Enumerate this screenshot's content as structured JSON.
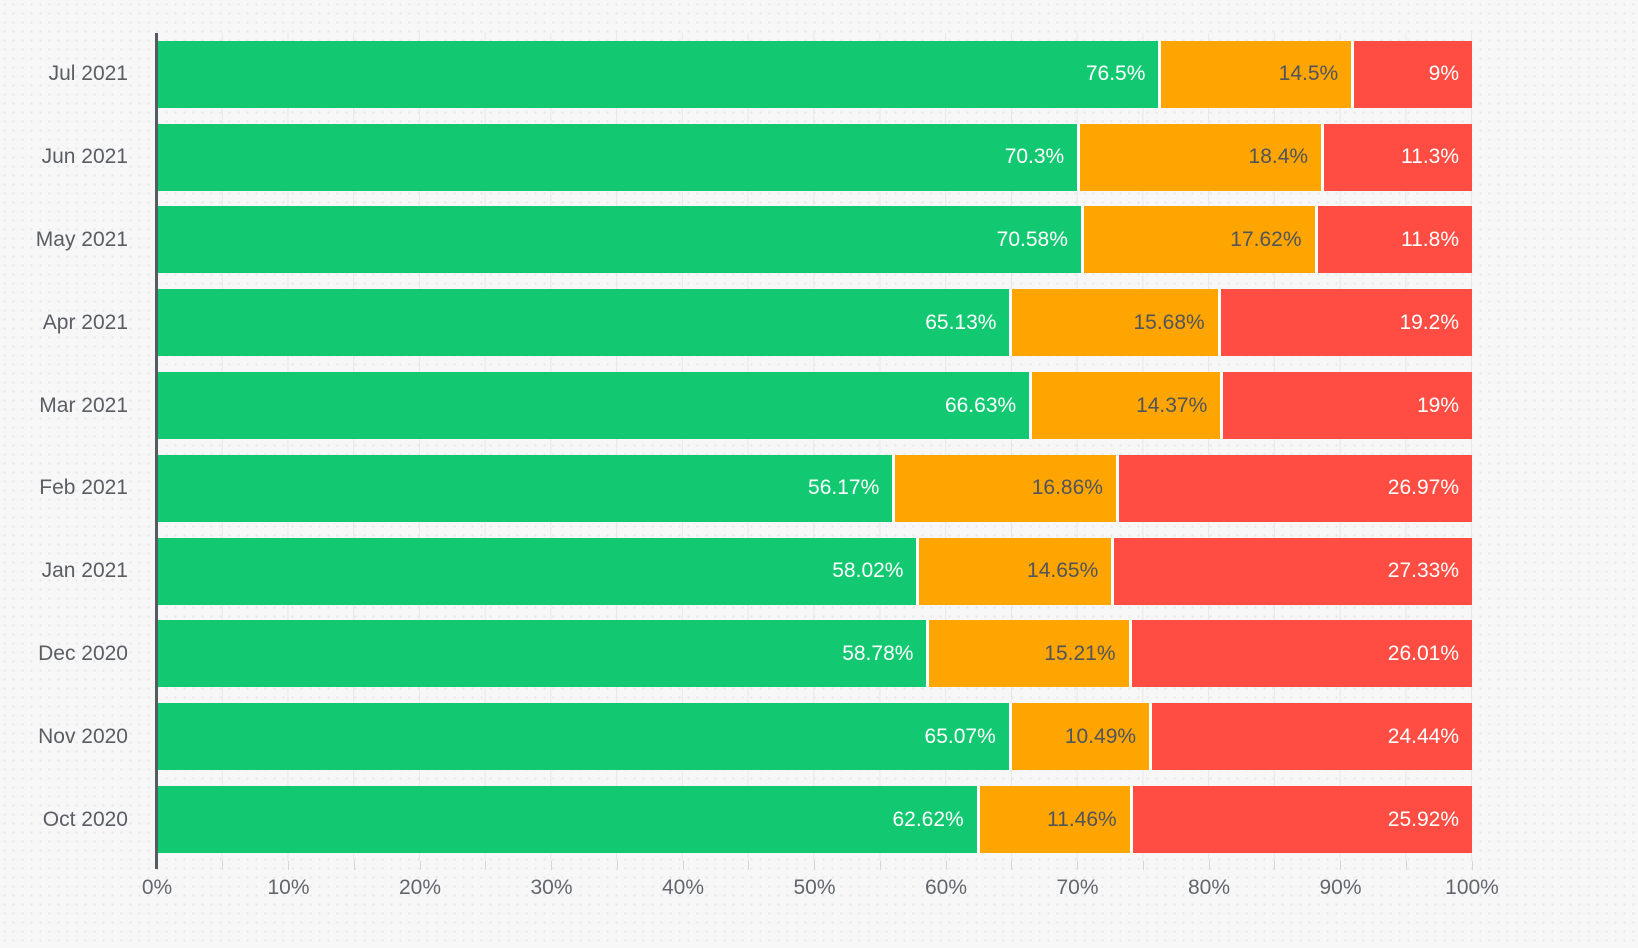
{
  "chart_data": {
    "type": "bar",
    "orientation": "horizontal",
    "stacked": true,
    "title": "",
    "xlabel": "",
    "ylabel": "",
    "xlim": [
      0,
      100
    ],
    "grid": true,
    "legend": "none",
    "categories": [
      "Jul 2021",
      "Jun 2021",
      "May 2021",
      "Apr 2021",
      "Mar 2021",
      "Feb 2021",
      "Jan 2021",
      "Dec 2020",
      "Nov 2020",
      "Oct 2020"
    ],
    "series": [
      {
        "name": "green-segment",
        "color": "#12c972",
        "label_color": "#ffffff",
        "values": [
          76.5,
          70.3,
          70.58,
          65.13,
          66.63,
          56.17,
          58.02,
          58.78,
          65.07,
          62.62
        ],
        "labels": [
          "76.5%",
          "70.3%",
          "70.58%",
          "65.13%",
          "66.63%",
          "56.17%",
          "58.02%",
          "58.78%",
          "65.07%",
          "62.62%"
        ]
      },
      {
        "name": "orange-segment",
        "color": "#ffa502",
        "label_color": "#515459",
        "values": [
          14.5,
          18.4,
          17.62,
          15.68,
          14.37,
          16.86,
          14.65,
          15.21,
          10.49,
          11.46
        ],
        "labels": [
          "14.5%",
          "18.4%",
          "17.62%",
          "15.68%",
          "14.37%",
          "16.86%",
          "14.65%",
          "15.21%",
          "10.49%",
          "11.46%"
        ]
      },
      {
        "name": "red-segment",
        "color": "#ff4d43",
        "label_color": "#ffffff",
        "values": [
          9,
          11.3,
          11.8,
          19.2,
          19,
          26.97,
          27.33,
          26.01,
          24.44,
          25.92
        ],
        "labels": [
          "9%",
          "11.3%",
          "11.8%",
          "19.2%",
          "19%",
          "26.97%",
          "27.33%",
          "26.01%",
          "24.44%",
          "25.92%"
        ]
      }
    ],
    "x_axis": {
      "ticks": [
        "0%",
        "10%",
        "20%",
        "30%",
        "40%",
        "50%",
        "60%",
        "70%",
        "80%",
        "90%",
        "100%"
      ],
      "tick_values": [
        0,
        10,
        20,
        30,
        40,
        50,
        60,
        70,
        80,
        90,
        100
      ],
      "minor_tick_step_pct": 5
    },
    "style": {
      "background": "#f7f7f8",
      "dot_pattern_color": "#e6e7e9",
      "gridline_color": "#e7e8ea",
      "axis_line_color": "#565b61",
      "axis_text_color": "#63676c",
      "category_text_color": "#5a5e63"
    }
  }
}
